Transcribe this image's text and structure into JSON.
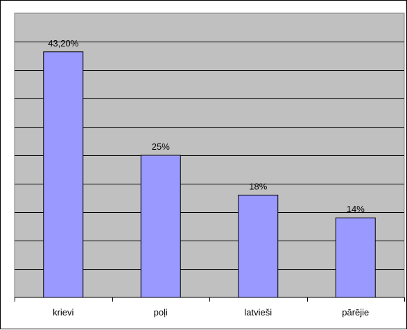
{
  "chart_data": {
    "type": "bar",
    "categories": [
      "krievi",
      "poļi",
      "latvieši",
      "pārējie"
    ],
    "values": [
      43.2,
      25,
      18,
      14
    ],
    "data_labels": [
      "43,20%",
      "25%",
      "18%",
      "14%"
    ],
    "ylim": [
      0,
      50
    ],
    "grid": true,
    "legend": "none",
    "colors": {
      "plot_bg": "#c0c0c0",
      "bar": "#9999ff",
      "gridline": "#000000"
    }
  }
}
